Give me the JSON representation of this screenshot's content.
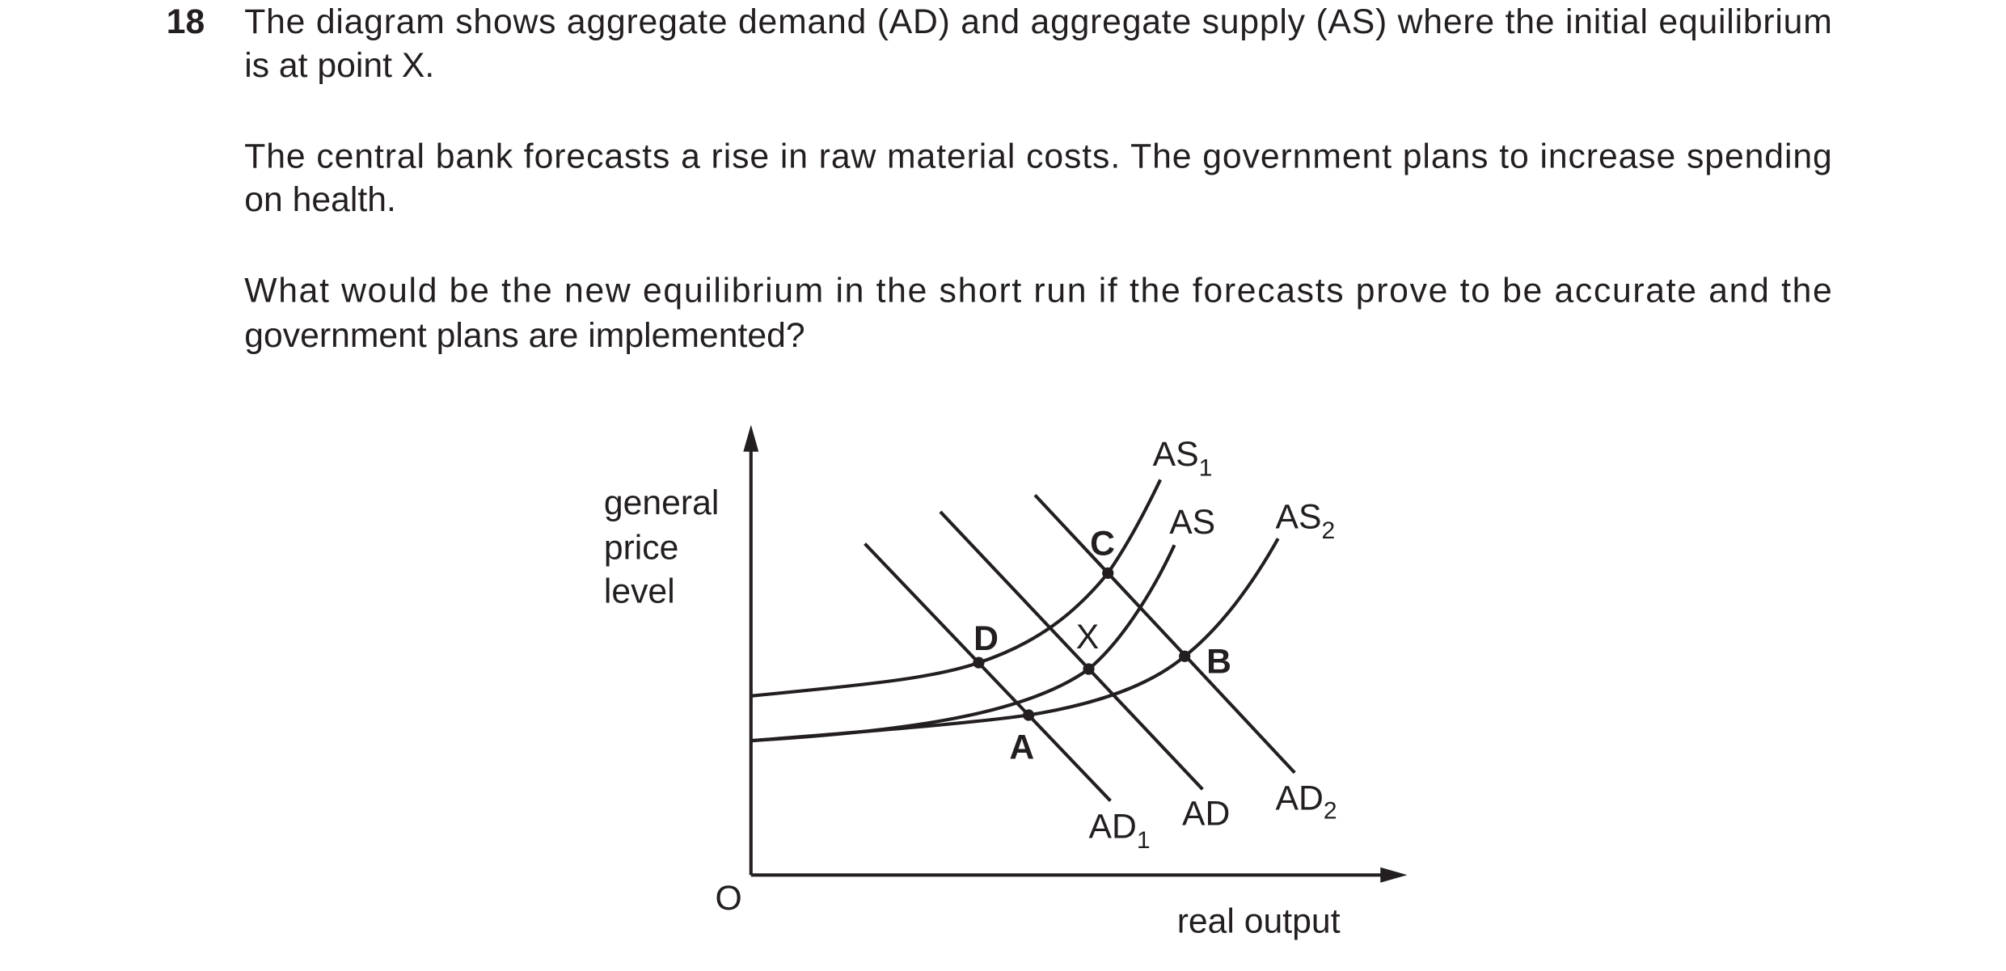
{
  "question": {
    "number": "18",
    "paragraphs": [
      [
        "The diagram shows aggregate demand (AD) and aggregate supply (AS) where the initial equilibrium",
        "is at point X."
      ],
      [
        "The central bank forecasts a rise in raw material costs. The government plans to increase spending",
        "on health."
      ],
      [
        "What would be the new equilibrium in the short run if the forecasts prove to be accurate and the",
        "government plans are implemented?"
      ]
    ]
  },
  "diagram": {
    "y_axis_label": [
      "general",
      "price",
      "level"
    ],
    "x_axis_label": "real output",
    "origin": "O",
    "curves": {
      "as1": {
        "main": "AS",
        "sub": "1"
      },
      "as": {
        "main": "AS"
      },
      "as2": {
        "main": "AS",
        "sub": "2"
      },
      "ad1": {
        "main": "AD",
        "sub": "1"
      },
      "ad": {
        "main": "AD"
      },
      "ad2": {
        "main": "AD",
        "sub": "2"
      }
    },
    "points": {
      "a": "A",
      "b": "B",
      "c": "C",
      "d": "D",
      "x": "X"
    }
  }
}
